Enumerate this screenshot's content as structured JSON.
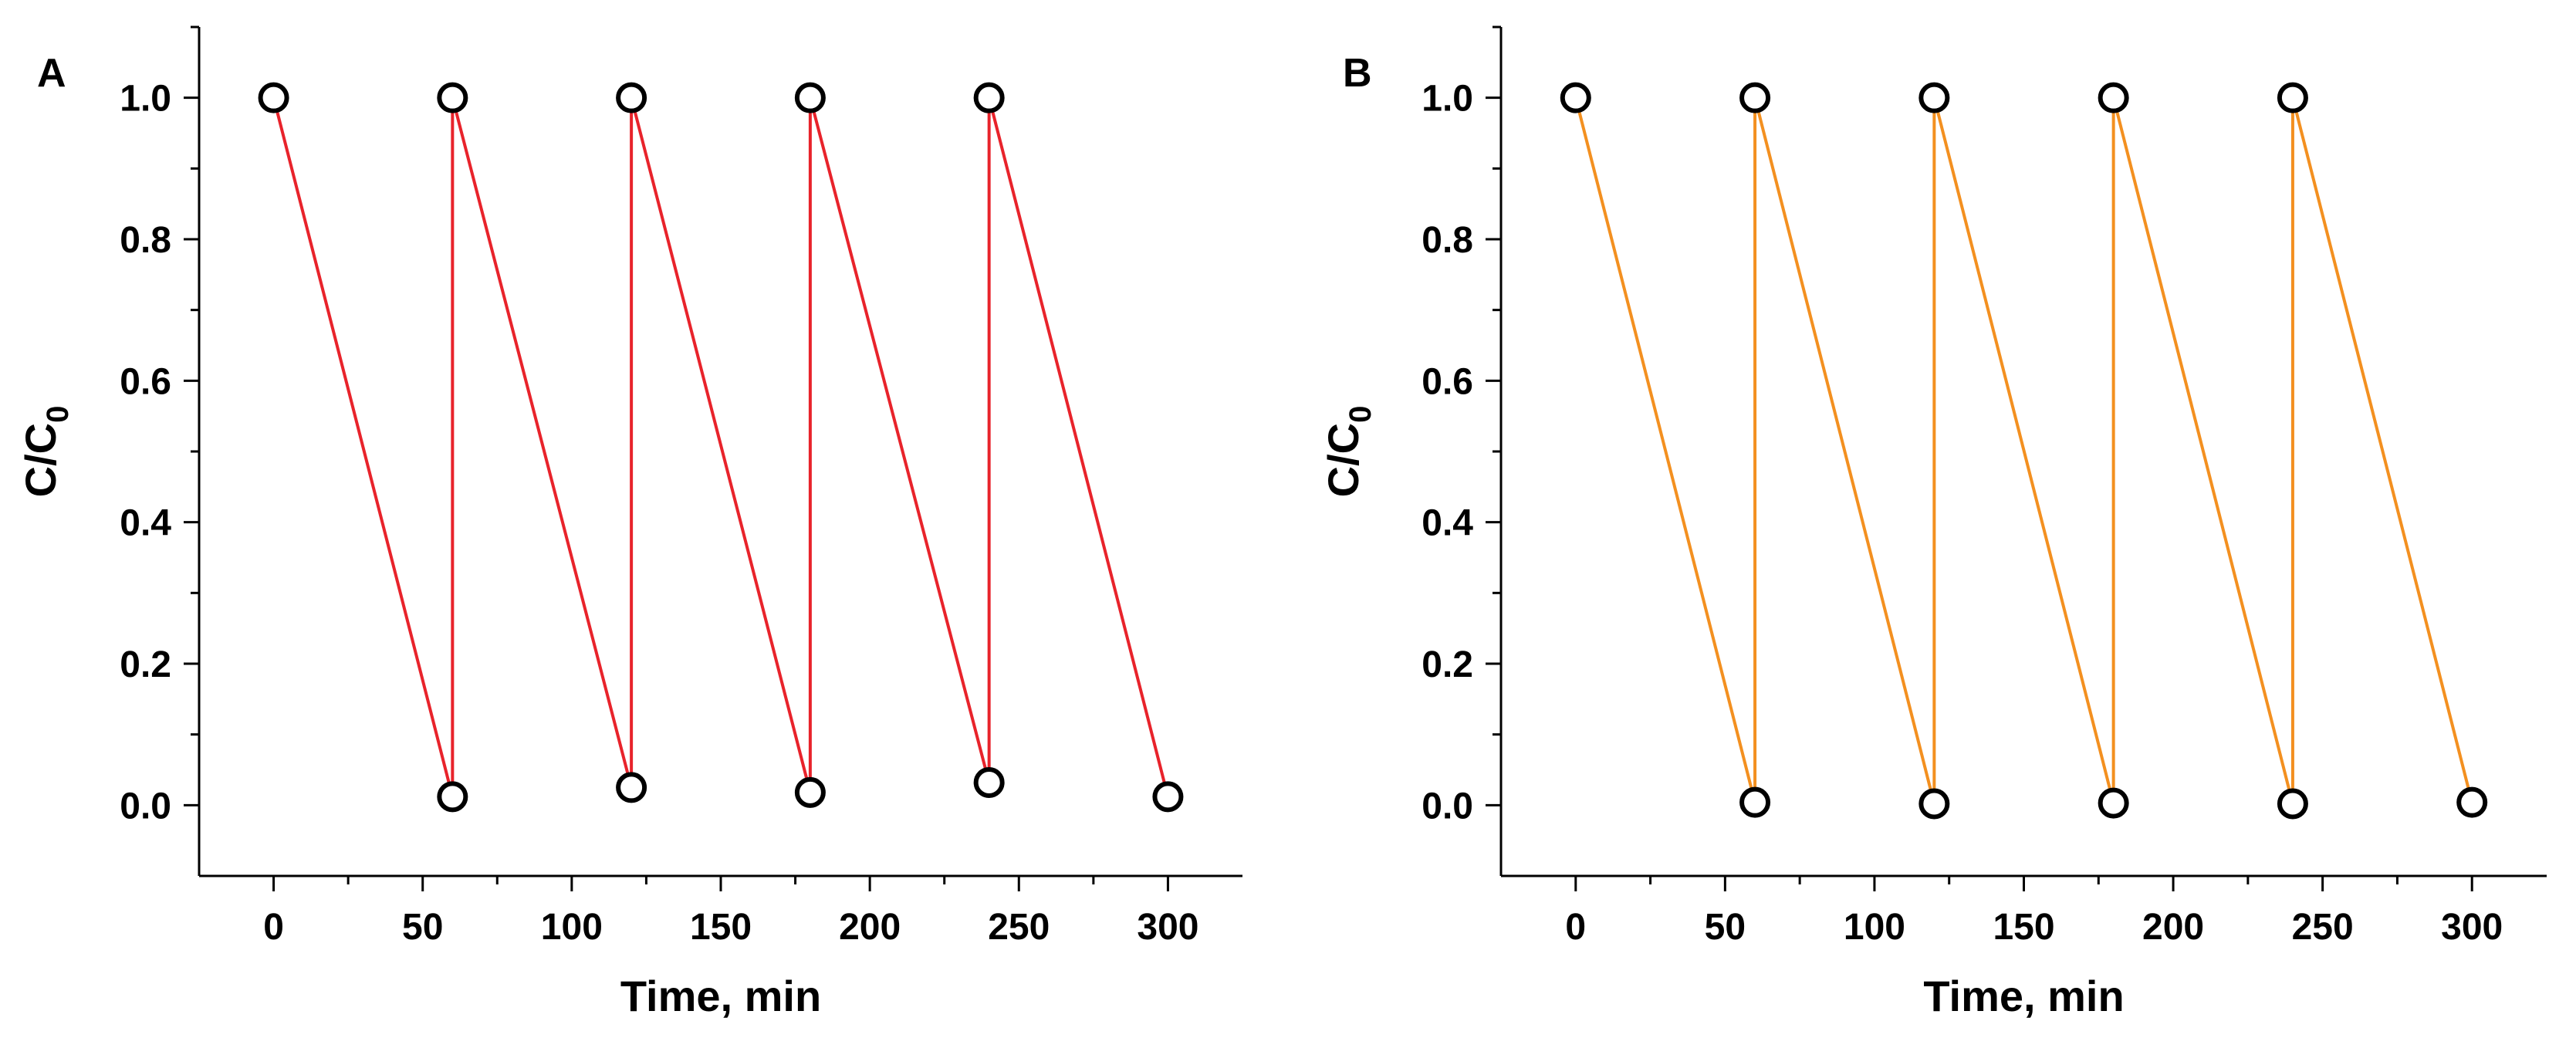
{
  "chart_data": [
    {
      "type": "line",
      "panel_label": "A",
      "title": "",
      "xlabel": "Time, min",
      "ylabel_main": "C/C",
      "ylabel_sub": "0",
      "xlim": [
        -25,
        325
      ],
      "ylim": [
        -0.1,
        1.1
      ],
      "xticks": [
        0,
        50,
        100,
        150,
        200,
        250,
        300
      ],
      "xtick_labels": [
        "0",
        "50",
        "100",
        "150",
        "200",
        "250",
        "300"
      ],
      "yticks": [
        0.0,
        0.2,
        0.4,
        0.6,
        0.8,
        1.0
      ],
      "ytick_labels": [
        "0.0",
        "0.2",
        "0.4",
        "0.6",
        "0.8",
        "1.0"
      ],
      "line_color": "#e8232b",
      "marker": "open-circle",
      "series": [
        {
          "name": "cycles",
          "x": [
            0,
            60,
            60,
            120,
            120,
            180,
            180,
            240,
            240,
            300
          ],
          "y": [
            1.0,
            0.012,
            1.0,
            0.025,
            1.0,
            0.018,
            1.0,
            0.032,
            1.0,
            0.012
          ]
        }
      ]
    },
    {
      "type": "line",
      "panel_label": "B",
      "title": "",
      "xlabel": "Time, min",
      "ylabel_main": "C/C",
      "ylabel_sub": "0",
      "xlim": [
        -25,
        325
      ],
      "ylim": [
        -0.1,
        1.1
      ],
      "xticks": [
        0,
        50,
        100,
        150,
        200,
        250,
        300
      ],
      "xtick_labels": [
        "0",
        "50",
        "100",
        "150",
        "200",
        "250",
        "300"
      ],
      "yticks": [
        0.0,
        0.2,
        0.4,
        0.6,
        0.8,
        1.0
      ],
      "ytick_labels": [
        "0.0",
        "0.2",
        "0.4",
        "0.6",
        "0.8",
        "1.0"
      ],
      "line_color": "#f39020",
      "marker": "open-circle",
      "series": [
        {
          "name": "cycles",
          "x": [
            0,
            60,
            60,
            120,
            120,
            180,
            180,
            240,
            240,
            300
          ],
          "y": [
            1.0,
            0.004,
            1.0,
            0.002,
            1.0,
            0.003,
            1.0,
            0.002,
            1.0,
            0.004
          ]
        }
      ]
    }
  ]
}
